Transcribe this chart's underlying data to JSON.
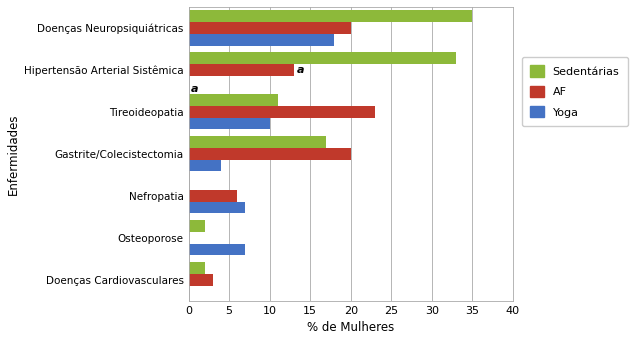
{
  "categories": [
    "Doenças Neuropsiquiátricas",
    "Hipertensão Arterial Sistêmica",
    "Tireoideopatia",
    "Gastrite/Colecistectomia",
    "Nefropatia",
    "Osteoporose",
    "Doenças Cardiovasculares"
  ],
  "sedentarias": [
    35,
    33,
    11,
    17,
    0,
    2,
    2
  ],
  "af": [
    20,
    13,
    23,
    20,
    6,
    0,
    3
  ],
  "yoga": [
    18,
    0,
    10,
    4,
    7,
    7,
    0
  ],
  "colors": {
    "sedentarias": "#8DB93A",
    "af": "#C0392B",
    "yoga": "#4472C4"
  },
  "xlabel": "% de Mulheres",
  "ylabel": "Enfermidades",
  "xlim": [
    0,
    40
  ],
  "xticks": [
    0,
    5,
    10,
    15,
    20,
    25,
    30,
    35,
    40
  ],
  "legend_labels": [
    "Sedentárias",
    "AF",
    "Yoga"
  ],
  "bar_height": 0.28
}
